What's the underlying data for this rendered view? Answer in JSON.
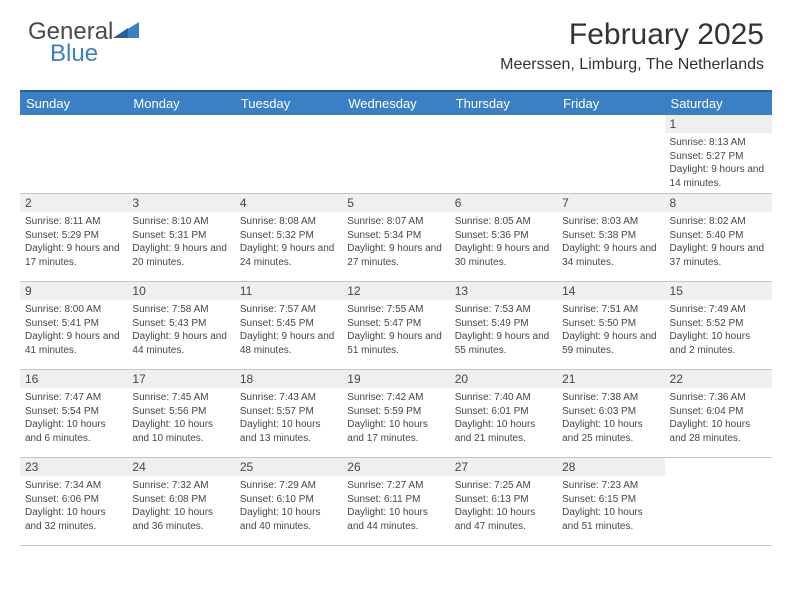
{
  "logo": {
    "text1": "General",
    "text2": "Blue"
  },
  "title": "February 2025",
  "location": "Meerssen, Limburg, The Netherlands",
  "colors": {
    "header_bg": "#3b7fc4",
    "header_border": "#2a5f99",
    "daynum_bg": "#efefef",
    "cell_border": "#b8c8db",
    "text": "#464646"
  },
  "weekdays": [
    "Sunday",
    "Monday",
    "Tuesday",
    "Wednesday",
    "Thursday",
    "Friday",
    "Saturday"
  ],
  "weeks": [
    [
      null,
      null,
      null,
      null,
      null,
      null,
      {
        "n": "1",
        "sr": "Sunrise: 8:13 AM",
        "ss": "Sunset: 5:27 PM",
        "dl": "Daylight: 9 hours and 14 minutes."
      }
    ],
    [
      {
        "n": "2",
        "sr": "Sunrise: 8:11 AM",
        "ss": "Sunset: 5:29 PM",
        "dl": "Daylight: 9 hours and 17 minutes."
      },
      {
        "n": "3",
        "sr": "Sunrise: 8:10 AM",
        "ss": "Sunset: 5:31 PM",
        "dl": "Daylight: 9 hours and 20 minutes."
      },
      {
        "n": "4",
        "sr": "Sunrise: 8:08 AM",
        "ss": "Sunset: 5:32 PM",
        "dl": "Daylight: 9 hours and 24 minutes."
      },
      {
        "n": "5",
        "sr": "Sunrise: 8:07 AM",
        "ss": "Sunset: 5:34 PM",
        "dl": "Daylight: 9 hours and 27 minutes."
      },
      {
        "n": "6",
        "sr": "Sunrise: 8:05 AM",
        "ss": "Sunset: 5:36 PM",
        "dl": "Daylight: 9 hours and 30 minutes."
      },
      {
        "n": "7",
        "sr": "Sunrise: 8:03 AM",
        "ss": "Sunset: 5:38 PM",
        "dl": "Daylight: 9 hours and 34 minutes."
      },
      {
        "n": "8",
        "sr": "Sunrise: 8:02 AM",
        "ss": "Sunset: 5:40 PM",
        "dl": "Daylight: 9 hours and 37 minutes."
      }
    ],
    [
      {
        "n": "9",
        "sr": "Sunrise: 8:00 AM",
        "ss": "Sunset: 5:41 PM",
        "dl": "Daylight: 9 hours and 41 minutes."
      },
      {
        "n": "10",
        "sr": "Sunrise: 7:58 AM",
        "ss": "Sunset: 5:43 PM",
        "dl": "Daylight: 9 hours and 44 minutes."
      },
      {
        "n": "11",
        "sr": "Sunrise: 7:57 AM",
        "ss": "Sunset: 5:45 PM",
        "dl": "Daylight: 9 hours and 48 minutes."
      },
      {
        "n": "12",
        "sr": "Sunrise: 7:55 AM",
        "ss": "Sunset: 5:47 PM",
        "dl": "Daylight: 9 hours and 51 minutes."
      },
      {
        "n": "13",
        "sr": "Sunrise: 7:53 AM",
        "ss": "Sunset: 5:49 PM",
        "dl": "Daylight: 9 hours and 55 minutes."
      },
      {
        "n": "14",
        "sr": "Sunrise: 7:51 AM",
        "ss": "Sunset: 5:50 PM",
        "dl": "Daylight: 9 hours and 59 minutes."
      },
      {
        "n": "15",
        "sr": "Sunrise: 7:49 AM",
        "ss": "Sunset: 5:52 PM",
        "dl": "Daylight: 10 hours and 2 minutes."
      }
    ],
    [
      {
        "n": "16",
        "sr": "Sunrise: 7:47 AM",
        "ss": "Sunset: 5:54 PM",
        "dl": "Daylight: 10 hours and 6 minutes."
      },
      {
        "n": "17",
        "sr": "Sunrise: 7:45 AM",
        "ss": "Sunset: 5:56 PM",
        "dl": "Daylight: 10 hours and 10 minutes."
      },
      {
        "n": "18",
        "sr": "Sunrise: 7:43 AM",
        "ss": "Sunset: 5:57 PM",
        "dl": "Daylight: 10 hours and 13 minutes."
      },
      {
        "n": "19",
        "sr": "Sunrise: 7:42 AM",
        "ss": "Sunset: 5:59 PM",
        "dl": "Daylight: 10 hours and 17 minutes."
      },
      {
        "n": "20",
        "sr": "Sunrise: 7:40 AM",
        "ss": "Sunset: 6:01 PM",
        "dl": "Daylight: 10 hours and 21 minutes."
      },
      {
        "n": "21",
        "sr": "Sunrise: 7:38 AM",
        "ss": "Sunset: 6:03 PM",
        "dl": "Daylight: 10 hours and 25 minutes."
      },
      {
        "n": "22",
        "sr": "Sunrise: 7:36 AM",
        "ss": "Sunset: 6:04 PM",
        "dl": "Daylight: 10 hours and 28 minutes."
      }
    ],
    [
      {
        "n": "23",
        "sr": "Sunrise: 7:34 AM",
        "ss": "Sunset: 6:06 PM",
        "dl": "Daylight: 10 hours and 32 minutes."
      },
      {
        "n": "24",
        "sr": "Sunrise: 7:32 AM",
        "ss": "Sunset: 6:08 PM",
        "dl": "Daylight: 10 hours and 36 minutes."
      },
      {
        "n": "25",
        "sr": "Sunrise: 7:29 AM",
        "ss": "Sunset: 6:10 PM",
        "dl": "Daylight: 10 hours and 40 minutes."
      },
      {
        "n": "26",
        "sr": "Sunrise: 7:27 AM",
        "ss": "Sunset: 6:11 PM",
        "dl": "Daylight: 10 hours and 44 minutes."
      },
      {
        "n": "27",
        "sr": "Sunrise: 7:25 AM",
        "ss": "Sunset: 6:13 PM",
        "dl": "Daylight: 10 hours and 47 minutes."
      },
      {
        "n": "28",
        "sr": "Sunrise: 7:23 AM",
        "ss": "Sunset: 6:15 PM",
        "dl": "Daylight: 10 hours and 51 minutes."
      },
      null
    ]
  ]
}
